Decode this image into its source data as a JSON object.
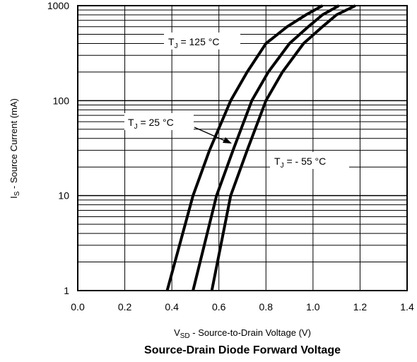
{
  "chart_data": {
    "type": "line",
    "title": "Source-Drain Diode Forward Voltage",
    "xlabel": {
      "main": "V",
      "sub": "SD",
      "rest": " - Source-to-Drain Voltage (V)"
    },
    "ylabel": {
      "main": "I",
      "sub": "S",
      "rest": " - Source Current (mA)"
    },
    "xlim": [
      0.0,
      1.4
    ],
    "ylim": [
      1,
      1000
    ],
    "yscale": "log",
    "grid": true,
    "x_ticks": [
      "0.0",
      "0.2",
      "0.4",
      "0.6",
      "0.8",
      "1.0",
      "1.2",
      "1.4"
    ],
    "y_ticks": [
      "1",
      "10",
      "100",
      "1000"
    ],
    "series": [
      {
        "name": "T_J = 125 °C",
        "x": [
          0.38,
          0.49,
          0.56,
          0.65,
          0.72,
          0.8,
          0.89,
          0.97,
          1.04
        ],
        "y": [
          1,
          10,
          30,
          100,
          200,
          400,
          600,
          800,
          1000
        ]
      },
      {
        "name": "T_J = 25 °C",
        "x": [
          0.49,
          0.59,
          0.66,
          0.74,
          0.81,
          0.9,
          0.98,
          1.04,
          1.11
        ],
        "y": [
          1,
          10,
          30,
          100,
          200,
          400,
          600,
          800,
          1000
        ]
      },
      {
        "name": "T_J = - 55 °C",
        "x": [
          0.57,
          0.65,
          0.72,
          0.8,
          0.87,
          0.96,
          1.04,
          1.1,
          1.18
        ],
        "y": [
          1,
          10,
          30,
          100,
          200,
          400,
          600,
          800,
          1000
        ]
      }
    ],
    "annotations": [
      {
        "main": "T",
        "sub": "J",
        "rest": " = 125 °C"
      },
      {
        "main": "T",
        "sub": "J",
        "rest": " = 25 °C"
      },
      {
        "main": "T",
        "sub": "J",
        "rest": " = - 55 °C"
      }
    ]
  }
}
